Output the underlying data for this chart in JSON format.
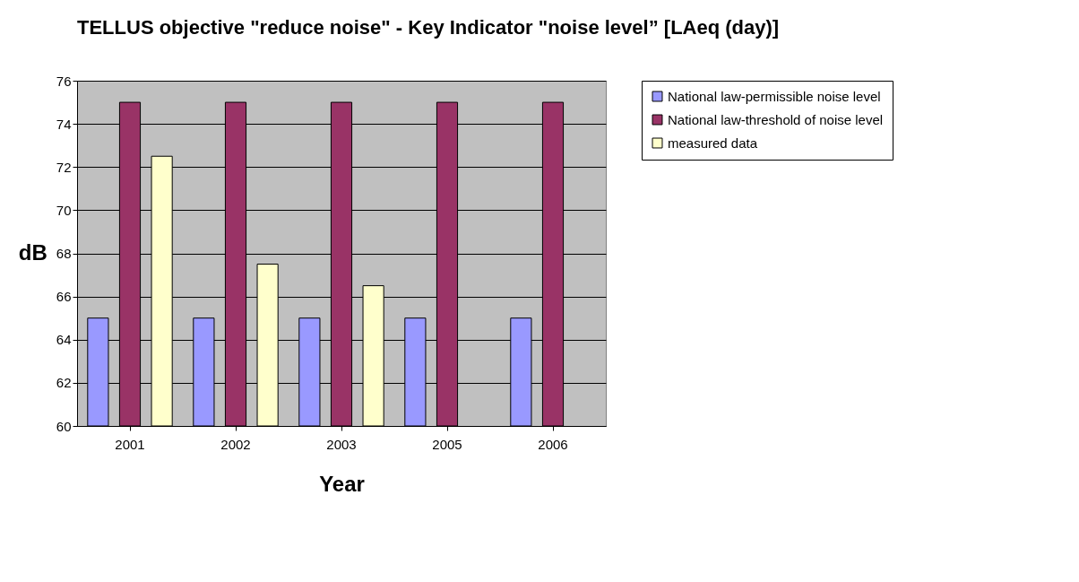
{
  "chart_data": {
    "type": "bar",
    "title": "TELLUS objective \"reduce noise\" - Key Indicator \"noise level” [LAeq (day)]",
    "xlabel": "Year",
    "ylabel": "dB",
    "categories": [
      "2001",
      "2002",
      "2003",
      "2005",
      "2006"
    ],
    "series": [
      {
        "name": "National law-permissible noise level",
        "color": "#9999ff",
        "values": [
          65,
          65,
          65,
          65,
          65
        ]
      },
      {
        "name": "National law-threshold of noise level",
        "color": "#993366",
        "values": [
          75,
          75,
          75,
          75,
          75
        ]
      },
      {
        "name": "measured data",
        "color": "#ffffcc",
        "values": [
          72.5,
          67.5,
          66.5,
          null,
          null
        ]
      }
    ],
    "ylim": [
      60,
      76
    ],
    "yticks": [
      60,
      62,
      64,
      66,
      68,
      70,
      72,
      74,
      76
    ],
    "grid": "y",
    "legend": "right"
  }
}
